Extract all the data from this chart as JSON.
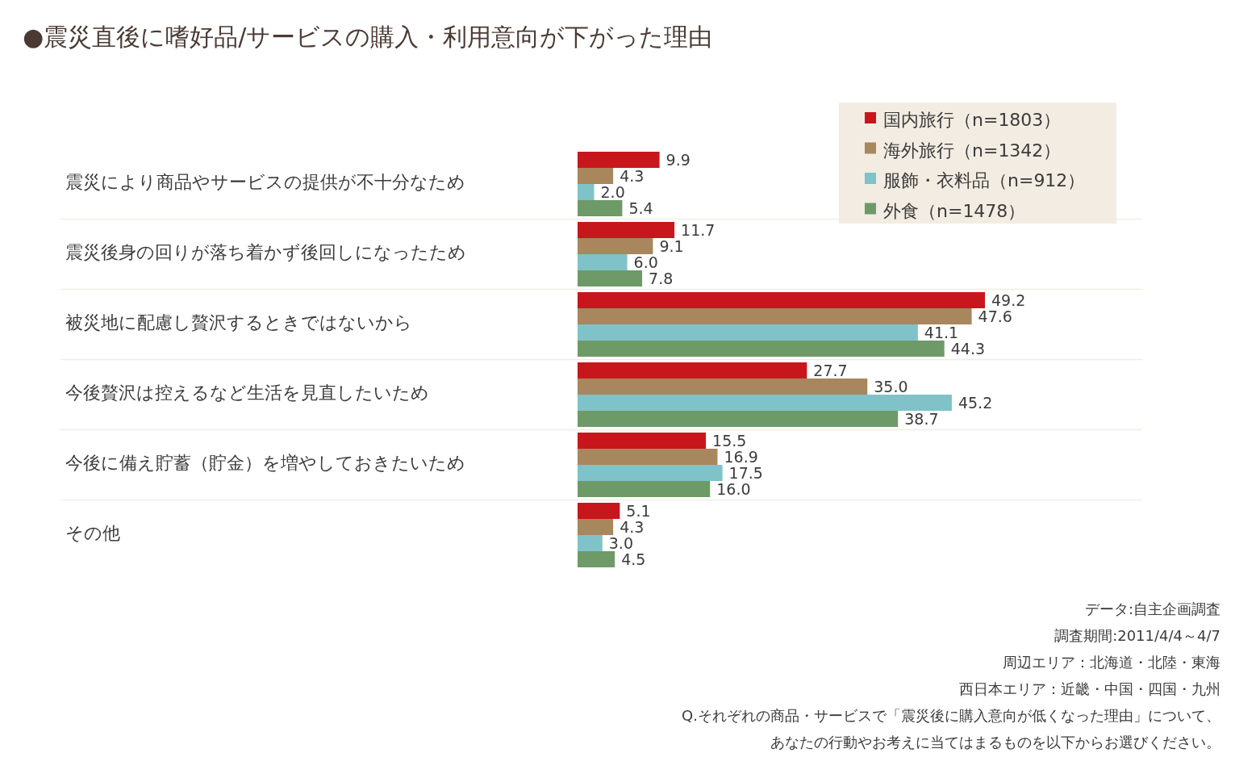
{
  "chart_data": {
    "type": "bar",
    "orientation": "horizontal",
    "title": "●震災直後に嗜好品/サービスの購入・利用意向が下がった理由",
    "categories": [
      "震災により商品やサービスの提供が不十分なため",
      "震災後身の回りが落ち着かず後回しになったため",
      "被災地に配慮し贅沢するときではないから",
      "今後贅沢は控えるなど生活を見直したいため",
      "今後に備え貯蓄（貯金）を増やしておきたいため",
      "その他"
    ],
    "series": [
      {
        "name": "国内旅行（n=1803）",
        "color": "#c8161d",
        "values": [
          9.9,
          11.7,
          49.2,
          27.7,
          15.5,
          5.1
        ],
        "value_labels": [
          "9.9",
          "11.7",
          "49.2",
          "27.7",
          "15.5",
          "5.1"
        ]
      },
      {
        "name": "海外旅行（n=1342）",
        "color": "#a8865e",
        "values": [
          4.3,
          9.1,
          47.6,
          35.0,
          16.9,
          4.3
        ],
        "value_labels": [
          "4.3",
          "9.1",
          "47.6",
          "35.0",
          "16.9",
          "4.3"
        ]
      },
      {
        "name": "服飾・衣料品（n=912）",
        "color": "#7fc3c8",
        "values": [
          2.0,
          6.0,
          41.1,
          45.2,
          17.5,
          3.0
        ],
        "value_labels": [
          "2.0",
          "6.0",
          "41.1",
          "45.2",
          "17.5",
          "3.0"
        ]
      },
      {
        "name": "外食（n=1478）",
        "color": "#6e9a68",
        "values": [
          5.4,
          7.8,
          44.3,
          38.7,
          16.0,
          4.5
        ],
        "value_labels": [
          "5.4",
          "7.8",
          "44.3",
          "38.7",
          "16.0",
          "4.5"
        ]
      }
    ],
    "legend": "top right",
    "annotations": [
      "データ:自主企画調査",
      "調査期間:2011/4/4～4/7",
      "周辺エリア：北海道・北陸・東海",
      "西日本エリア：近畿・中国・四国・九州",
      "Q.それぞれの商品・サービスで「震災後に購入意向が低くなった理由」について、",
      "あなたの行動やお考えに当てはまるものを以下からお選びください。"
    ]
  }
}
